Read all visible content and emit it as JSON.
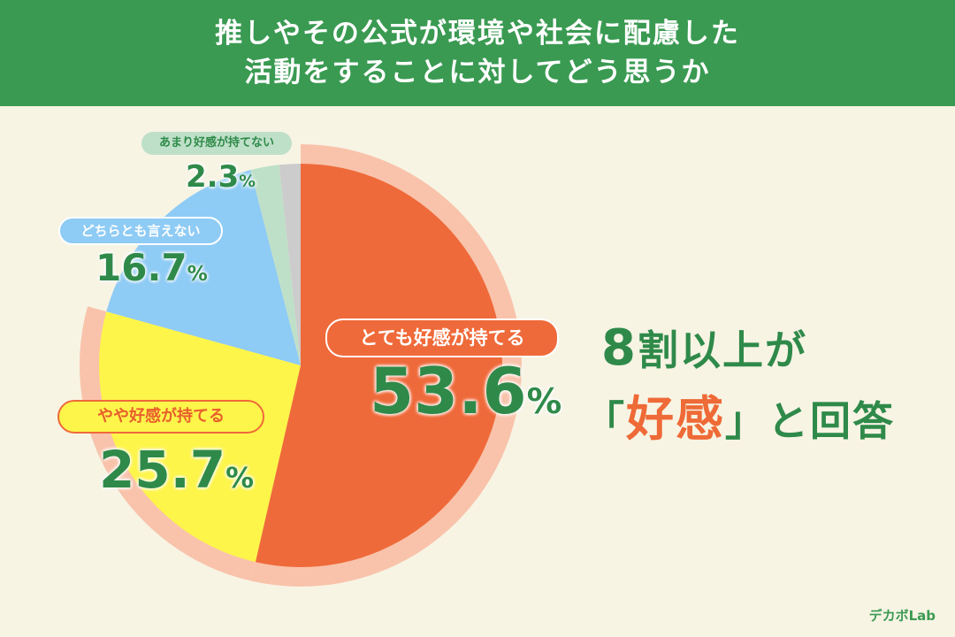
{
  "header": {
    "title_line1": "推しやその公式が環境や社会に配慮した",
    "title_line2": "活動をすることに対してどう思うか"
  },
  "chart_data": {
    "type": "pie",
    "title": "推しやその公式が環境や社会に配慮した活動をすることに対してどう思うか",
    "unit": "%",
    "slices": [
      {
        "label": "とても好感が持てる",
        "value": 53.6,
        "color": "#ef6a3a",
        "ring": "#f9c3ab"
      },
      {
        "label": "やや好感が持てる",
        "value": 25.7,
        "color": "#fdf54a",
        "ring": "#f9c3ab"
      },
      {
        "label": "どちらとも言えない",
        "value": 16.7,
        "color": "#8ecbf5"
      },
      {
        "label": "あまり好感が持てない",
        "value": 2.3,
        "color": "#bfe0c8"
      },
      {
        "label": "",
        "value": 1.7,
        "color": "#cccccc"
      }
    ]
  },
  "labels": {
    "s0_label": "とても好感が持てる",
    "s0_value": "53.6",
    "s1_label": "やや好感が持てる",
    "s1_value": "25.7",
    "s2_label": "どちらとも言えない",
    "s2_value": "16.7",
    "s3_label": "あまり好感が持てない",
    "s3_value": "2.3",
    "percent": "%"
  },
  "headline": {
    "num": "8",
    "line1": "割以上が",
    "open": "「",
    "highlight": "好感",
    "close": "」と回答"
  },
  "logo": "デカボLab"
}
